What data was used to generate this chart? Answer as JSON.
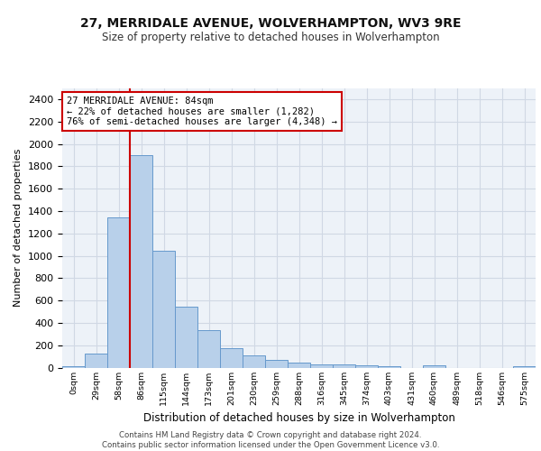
{
  "title1": "27, MERRIDALE AVENUE, WOLVERHAMPTON, WV3 9RE",
  "title2": "Size of property relative to detached houses in Wolverhampton",
  "xlabel": "Distribution of detached houses by size in Wolverhampton",
  "ylabel": "Number of detached properties",
  "footer": "Contains HM Land Registry data © Crown copyright and database right 2024.\nContains public sector information licensed under the Open Government Licence v3.0.",
  "bin_labels": [
    "0sqm",
    "29sqm",
    "58sqm",
    "86sqm",
    "115sqm",
    "144sqm",
    "173sqm",
    "201sqm",
    "230sqm",
    "259sqm",
    "288sqm",
    "316sqm",
    "345sqm",
    "374sqm",
    "403sqm",
    "431sqm",
    "460sqm",
    "489sqm",
    "518sqm",
    "546sqm",
    "575sqm"
  ],
  "bar_values": [
    10,
    125,
    1340,
    1900,
    1045,
    545,
    335,
    170,
    110,
    65,
    42,
    30,
    28,
    22,
    15,
    0,
    22,
    0,
    0,
    0,
    10
  ],
  "bar_color": "#b8d0ea",
  "bar_edge_color": "#6699cc",
  "annotation_text": "27 MERRIDALE AVENUE: 84sqm\n← 22% of detached houses are smaller (1,282)\n76% of semi-detached houses are larger (4,348) →",
  "annotation_box_color": "#ffffff",
  "annotation_box_edge": "#cc0000",
  "vline_color": "#cc0000",
  "vline_x": 2.5,
  "ylim": [
    0,
    2500
  ],
  "yticks": [
    0,
    200,
    400,
    600,
    800,
    1000,
    1200,
    1400,
    1600,
    1800,
    2000,
    2200,
    2400
  ],
  "grid_color": "#d0d8e4",
  "background_color": "#edf2f8"
}
